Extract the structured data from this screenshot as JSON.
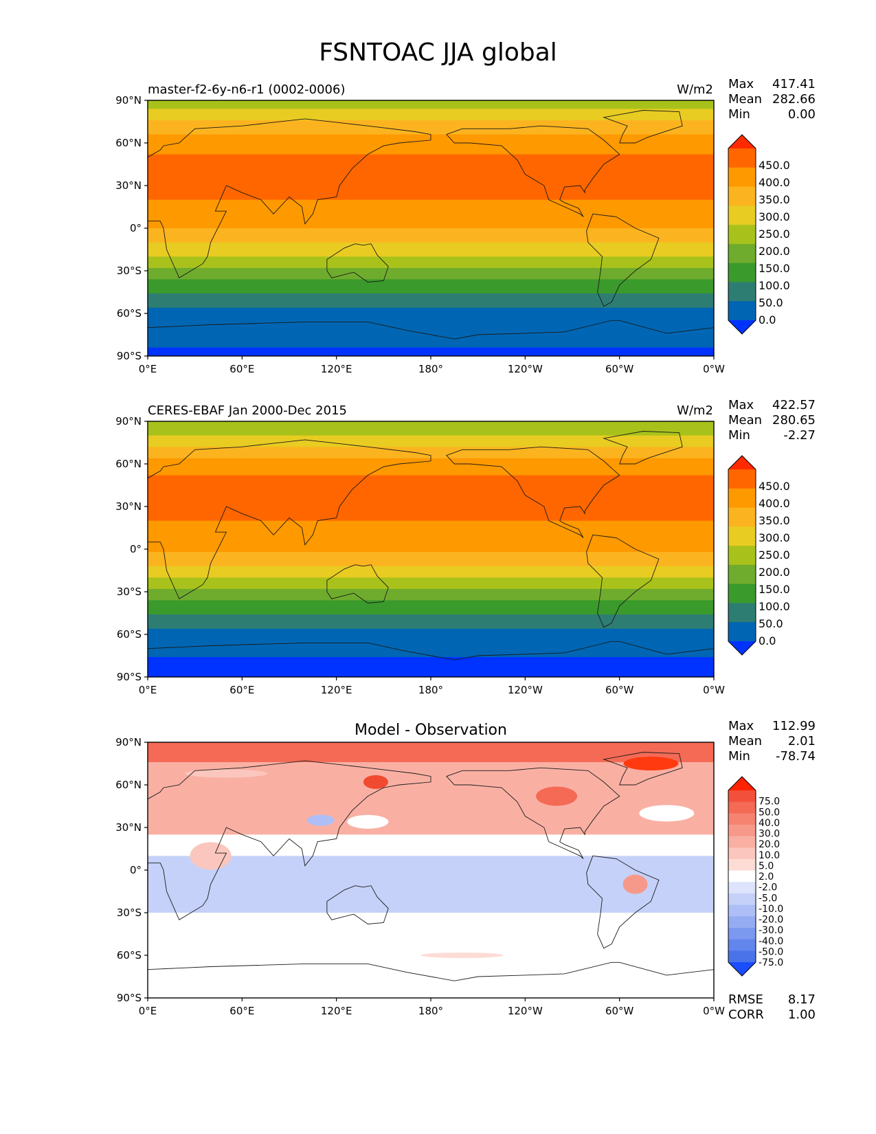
{
  "title": "FSNTOAC JJA global",
  "panels": [
    {
      "left_title": "master-f2-6y-n6-r1 (0002-0006)",
      "center_title": "",
      "units": "W/m2",
      "stats": [
        {
          "label": "Max",
          "value": "417.41"
        },
        {
          "label": "Mean",
          "value": "282.66"
        },
        {
          "label": "Min",
          "value": "0.00"
        }
      ],
      "colorbar_labels": [
        "450.0",
        "400.0",
        "350.0",
        "300.0",
        "250.0",
        "200.0",
        "150.0",
        "100.0",
        "50.0",
        "0.0"
      ],
      "colorbar_colors": [
        "#ff2a00",
        "#ff6600",
        "#ff9900",
        "#fbb41f",
        "#e8cc22",
        "#a9c21b",
        "#6fac2e",
        "#3a9a2c",
        "#2e7d73",
        "#0066b3",
        "#0033ff"
      ]
    },
    {
      "left_title": "CERES-EBAF Jan 2000-Dec 2015",
      "center_title": "",
      "units": "W/m2",
      "stats": [
        {
          "label": "Max",
          "value": "422.57"
        },
        {
          "label": "Mean",
          "value": "280.65"
        },
        {
          "label": "Min",
          "value": "-2.27"
        }
      ],
      "colorbar_labels": [
        "450.0",
        "400.0",
        "350.0",
        "300.0",
        "250.0",
        "200.0",
        "150.0",
        "100.0",
        "50.0",
        "0.0"
      ],
      "colorbar_colors": [
        "#ff2a00",
        "#ff6600",
        "#ff9900",
        "#fbb41f",
        "#e8cc22",
        "#a9c21b",
        "#6fac2e",
        "#3a9a2c",
        "#2e7d73",
        "#0066b3",
        "#0033ff"
      ]
    },
    {
      "left_title": "",
      "center_title": "Model - Observation",
      "units": "",
      "stats": [
        {
          "label": "Max",
          "value": "112.99"
        },
        {
          "label": "Mean",
          "value": "2.01"
        },
        {
          "label": "Min",
          "value": "-78.74"
        }
      ],
      "colorbar_labels": [
        "75.0",
        "50.0",
        "40.0",
        "30.0",
        "20.0",
        "10.0",
        "5.0",
        "2.0",
        "-2.0",
        "-5.0",
        "-10.0",
        "-20.0",
        "-30.0",
        "-40.0",
        "-50.0",
        "-75.0"
      ],
      "colorbar_colors": [
        "#ff2200",
        "#f2503a",
        "#f46a55",
        "#f58370",
        "#f7998a",
        "#f9b0a3",
        "#fbc6bd",
        "#fddcd6",
        "#ffffff",
        "#dde4fb",
        "#c5d1f8",
        "#adbff6",
        "#95acf3",
        "#7c99f0",
        "#6386ed",
        "#4a73ea",
        "#1a4dff"
      ],
      "footer_stats": [
        {
          "label": "RMSE",
          "value": "8.17"
        },
        {
          "label": "CORR",
          "value": "1.00"
        }
      ]
    }
  ],
  "lat_ticks": [
    "90°N",
    "60°N",
    "30°N",
    "0°",
    "30°S",
    "60°S",
    "90°S"
  ],
  "lon_ticks": [
    "0°E",
    "60°E",
    "120°E",
    "180°",
    "120°W",
    "60°W",
    "0°W"
  ],
  "field_colors": {
    "lvl400": "#ff6600",
    "lvl350": "#ff9900",
    "lvl300": "#fbb41f",
    "lvl250": "#e8cc22",
    "lvl200": "#a9c21b",
    "lvl150": "#6fac2e",
    "lvl100": "#3a9a2c",
    "lvl50": "#2e7d73",
    "lvl0": "#0066b3",
    "neg": "#0033ff",
    "diff_white": "#ffffff",
    "diff_pink": "#f9b0a3",
    "diff_red": "#f46a55",
    "diff_blue": "#c5d1f8"
  }
}
